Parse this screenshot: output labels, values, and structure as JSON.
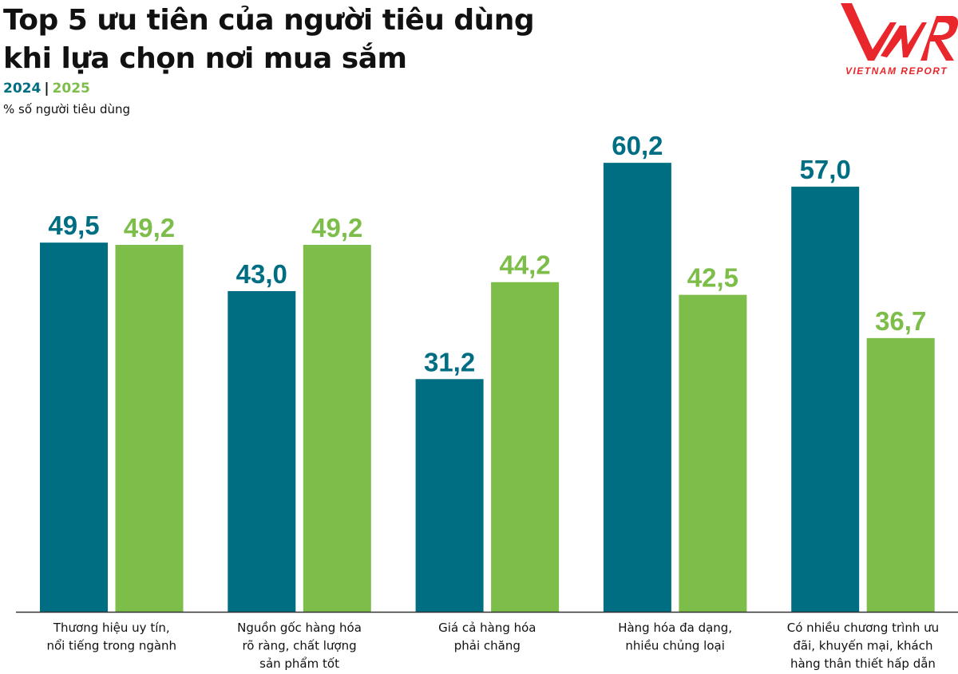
{
  "title_lines": [
    "Top 5 ưu tiên của người tiêu dùng",
    "khi lựa chọn nơi mua sắm"
  ],
  "logo": {
    "text": "VNR",
    "subtext": "VIETNAM REPORT",
    "color": "#e8262b"
  },
  "chart_data": {
    "type": "bar",
    "title": "Top 5 ưu tiên của người tiêu dùng khi lựa chọn nơi mua sắm",
    "ylabel": "% số người tiêu dùng",
    "ylim": [
      0,
      65
    ],
    "grid": false,
    "legend": "top-left",
    "categories": [
      [
        "Thương hiệu uy tín,",
        "nổi tiếng trong ngành"
      ],
      [
        "Nguồn gốc hàng hóa",
        "rõ ràng, chất lượng",
        "sản phẩm tốt"
      ],
      [
        "Giá cả hàng hóa",
        "phải chăng"
      ],
      [
        "Hàng hóa đa dạng,",
        "nhiều chủng loại"
      ],
      [
        "Có nhiều chương trình ưu",
        "đãi, khuyến mại, khách",
        "hàng thân thiết hấp dẫn"
      ]
    ],
    "series": [
      {
        "name": "2024",
        "color": "#006e82",
        "values": [
          49.5,
          43.0,
          31.2,
          60.2,
          57.0
        ],
        "labels": [
          "49,5",
          "43,0",
          "31,2",
          "60,2",
          "57,0"
        ]
      },
      {
        "name": "2025",
        "color": "#7dbd4a",
        "values": [
          49.2,
          49.2,
          44.2,
          42.5,
          36.7
        ],
        "labels": [
          "49,2",
          "49,2",
          "44,2",
          "42,5",
          "36,7"
        ]
      }
    ]
  }
}
